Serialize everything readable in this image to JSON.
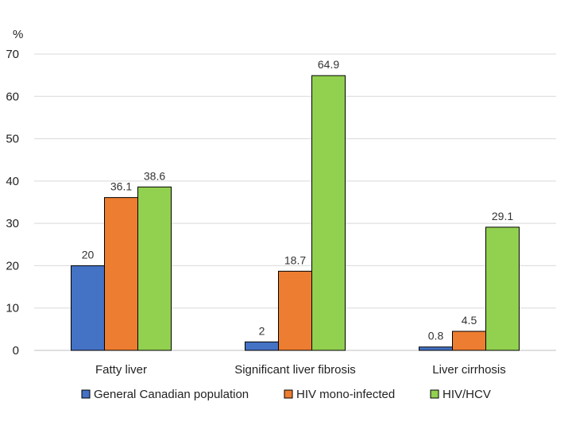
{
  "chart_data": {
    "type": "bar",
    "unit_label": "%",
    "categories": [
      "Fatty liver",
      "Significant liver fibrosis",
      "Liver cirrhosis"
    ],
    "series": [
      {
        "name": "General Canadian population",
        "color": "#4472C4",
        "values": [
          20,
          2,
          0.8
        ],
        "labels": [
          "20",
          "2",
          "0.8"
        ]
      },
      {
        "name": "HIV mono-infected",
        "color": "#ED7D31",
        "values": [
          36.1,
          18.7,
          4.5
        ],
        "labels": [
          "36.1",
          "18.7",
          "4.5"
        ]
      },
      {
        "name": "HIV/HCV",
        "color": "#92D050",
        "values": [
          38.6,
          64.9,
          29.1
        ],
        "labels": [
          "38.6",
          "64.9",
          "29.1"
        ]
      }
    ],
    "ylim": [
      0,
      70
    ],
    "yticks": [
      0,
      10,
      20,
      30,
      40,
      50,
      60,
      70
    ],
    "grid": true,
    "legend_position": "bottom"
  }
}
